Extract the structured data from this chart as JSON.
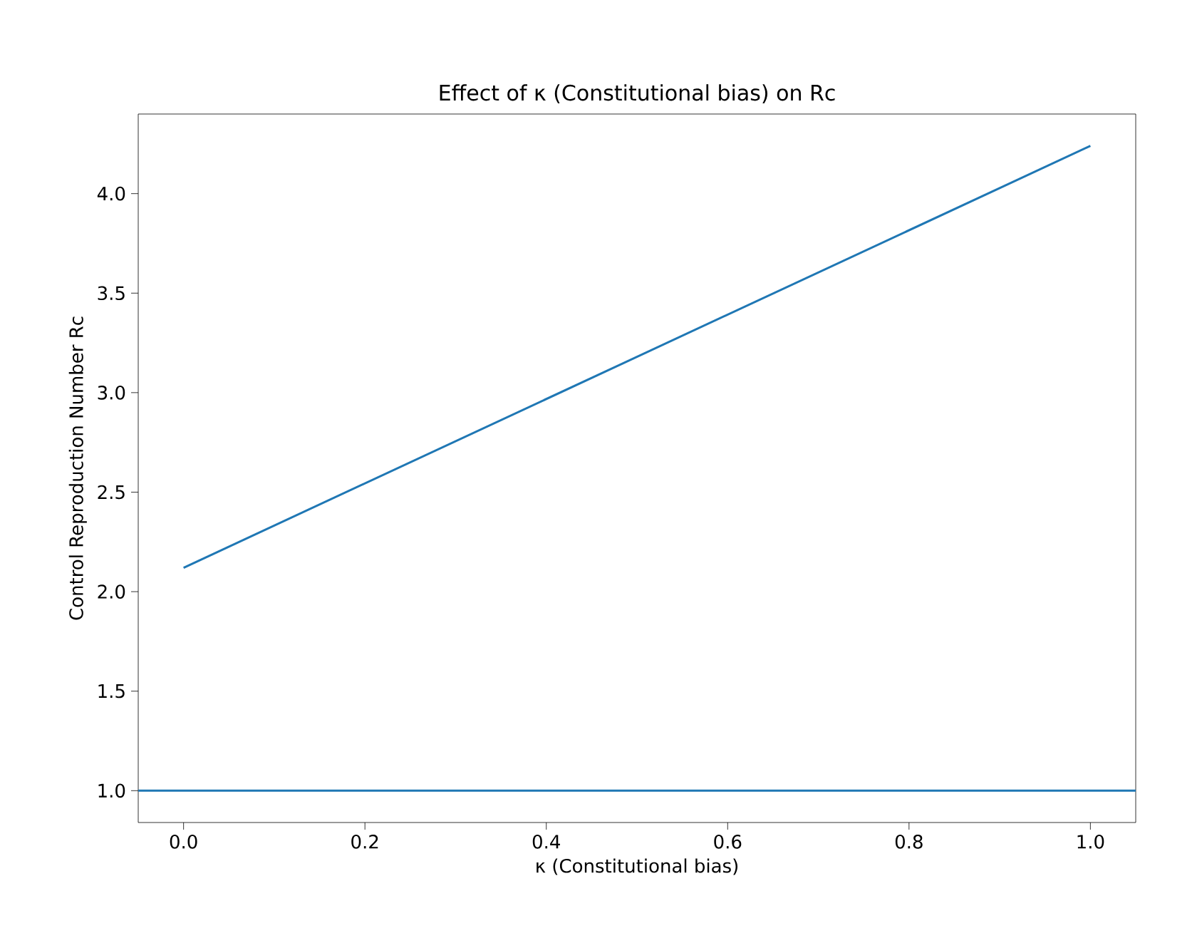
{
  "chart_data": {
    "type": "line",
    "title": "Effect of κ (Constitutional bias) on Rc",
    "xlabel": "κ (Constitutional bias)",
    "ylabel": "Control Reproduction Number Rc",
    "x": [
      0.0,
      1.0
    ],
    "series": [
      {
        "color": "#1f77b4",
        "values": [
          2.12,
          4.24
        ]
      }
    ],
    "ref_lines": [
      {
        "axis": "y",
        "value": 1.0,
        "color": "#1f77b4"
      }
    ],
    "xlim": [
      -0.05,
      1.05
    ],
    "ylim": [
      0.84,
      4.4
    ],
    "xticks": [
      {
        "value": 0,
        "label": "0.0"
      },
      0.2,
      0.4,
      0.6,
      0.8,
      {
        "value": 1,
        "label": "1.0"
      }
    ],
    "yticks": [
      {
        "value": 1,
        "label": "1.0"
      },
      1.5,
      {
        "value": 2,
        "label": "2.0"
      },
      2.5,
      {
        "value": 3,
        "label": "3.0"
      },
      3.5,
      {
        "value": 4,
        "label": "4.0"
      }
    ],
    "grid": false,
    "marker": "none",
    "line_style": "solid"
  }
}
